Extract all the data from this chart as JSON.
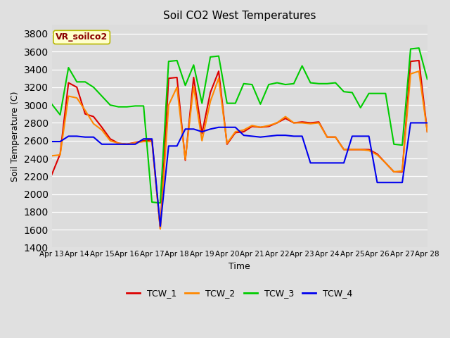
{
  "title": "Soil CO2 West Temperatures",
  "xlabel": "Time",
  "ylabel": "Soil Temperature (C)",
  "ylim": [
    1400,
    3900
  ],
  "annotation_text": "VR_soilco2",
  "annotation_bg": "#ffffcc",
  "annotation_border": "#b8b800",
  "annotation_text_color": "#8b0000",
  "legend_labels": [
    "TCW_1",
    "TCW_2",
    "TCW_3",
    "TCW_4"
  ],
  "line_colors": [
    "#dd0000",
    "#ff8800",
    "#00cc00",
    "#0000ee"
  ],
  "x_tick_labels": [
    "Apr 13",
    "Apr 14",
    "Apr 15",
    "Apr 16",
    "Apr 17",
    "Apr 18",
    "Apr 19",
    "Apr 20",
    "Apr 21",
    "Apr 22",
    "Apr 23",
    "Apr 24",
    "Apr 25",
    "Apr 26",
    "Apr 27",
    "Apr 28"
  ],
  "TCW_1": [
    2220,
    2450,
    3250,
    3200,
    2900,
    2870,
    2750,
    2620,
    2570,
    2560,
    2580,
    2600,
    2610,
    1610,
    3300,
    3310,
    2380,
    3310,
    2680,
    3140,
    3380,
    2560,
    2690,
    2700,
    2760,
    2750,
    2760,
    2800,
    2850,
    2800,
    2810,
    2800,
    2810,
    2640,
    2640,
    2500,
    2500,
    2500,
    2500,
    2450,
    2350,
    2250,
    2250,
    3490,
    3500,
    2700
  ],
  "TCW_2": [
    2430,
    2440,
    3100,
    3080,
    2940,
    2790,
    2720,
    2600,
    2570,
    2560,
    2575,
    2590,
    2590,
    1610,
    3000,
    3200,
    2390,
    3210,
    2600,
    3040,
    3300,
    2570,
    2700,
    2720,
    2770,
    2750,
    2770,
    2800,
    2870,
    2800,
    2800,
    2790,
    2800,
    2640,
    2640,
    2500,
    2500,
    2500,
    2490,
    2440,
    2350,
    2250,
    2260,
    3350,
    3380,
    2700
  ],
  "TCW_3": [
    3010,
    2890,
    3420,
    3260,
    3260,
    3200,
    3100,
    3000,
    2980,
    2980,
    2990,
    2990,
    1910,
    1900,
    3490,
    3500,
    3220,
    3450,
    3020,
    3540,
    3550,
    3020,
    3020,
    3240,
    3230,
    3010,
    3230,
    3250,
    3230,
    3240,
    3440,
    3250,
    3240,
    3240,
    3250,
    3150,
    3140,
    2970,
    3130,
    3130,
    3130,
    2560,
    2550,
    3630,
    3640,
    3290
  ],
  "TCW_4": [
    2590,
    2590,
    2650,
    2650,
    2640,
    2640,
    2560,
    2560,
    2560,
    2560,
    2560,
    2620,
    2620,
    1640,
    2540,
    2540,
    2730,
    2730,
    2700,
    2730,
    2750,
    2750,
    2750,
    2660,
    2650,
    2640,
    2650,
    2660,
    2660,
    2650,
    2650,
    2350,
    2350,
    2350,
    2350,
    2350,
    2650,
    2650,
    2650,
    2130,
    2130,
    2130,
    2130,
    2800,
    2800,
    2800
  ]
}
